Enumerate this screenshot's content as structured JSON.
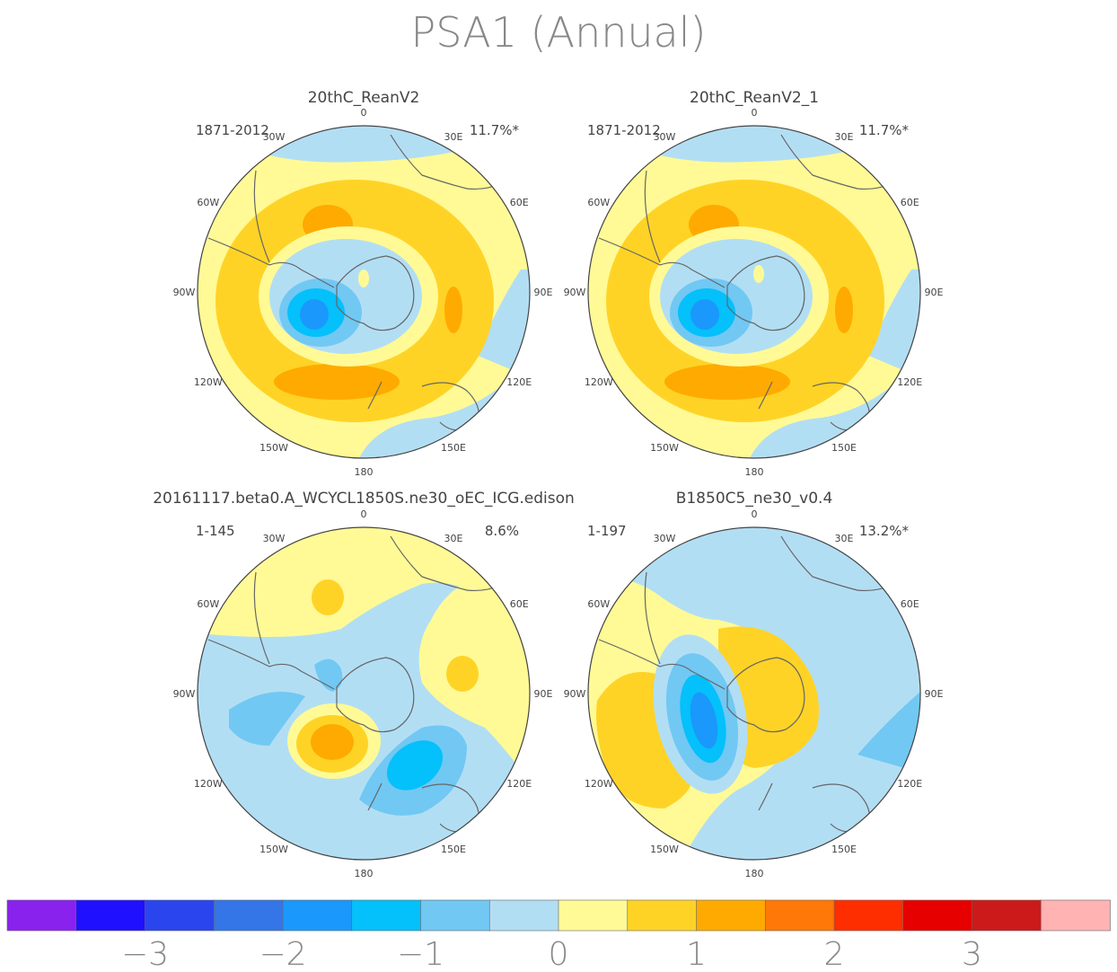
{
  "title": "PSA1 (Annual)",
  "lon_labels": [
    "0",
    "30E",
    "60E",
    "90E",
    "120E",
    "150E",
    "180",
    "150W",
    "120W",
    "90W",
    "60W",
    "30W"
  ],
  "panels": [
    {
      "name": "20thC_ReanV2",
      "period": "1871-2012",
      "pct": "11.7%*"
    },
    {
      "name": "20thC_ReanV2_1",
      "period": "1871-2012",
      "pct": "11.7%*"
    },
    {
      "name": "20161117.beta0.A_WCYCL1850S.ne30_oEC_ICG.edison",
      "period": "1-145",
      "pct": "8.6%"
    },
    {
      "name": "B1850C5_ne30_v0.4",
      "period": "1-197",
      "pct": "13.2%*"
    }
  ],
  "colorbar": {
    "colors": [
      "#8a22ee",
      "#1f10ff",
      "#2b45ee",
      "#3476e8",
      "#1b98fb",
      "#04c0fb",
      "#71c8f3",
      "#b2def4",
      "#fffa96",
      "#ffd326",
      "#ffaa00",
      "#ff7808",
      "#ff2e00",
      "#e60000",
      "#cc1a1a",
      "#ffb3b3"
    ],
    "tick_labels": [
      "-3",
      "-2",
      "-1",
      "0",
      "1",
      "2",
      "3"
    ]
  },
  "palette": {
    "lblue": "#b2def4",
    "mblue": "#71c8f3",
    "blue": "#1b98fb",
    "cyan": "#04c0fb",
    "lyellow": "#fffa96",
    "yellow": "#ffd326",
    "orange": "#ffaa00"
  }
}
